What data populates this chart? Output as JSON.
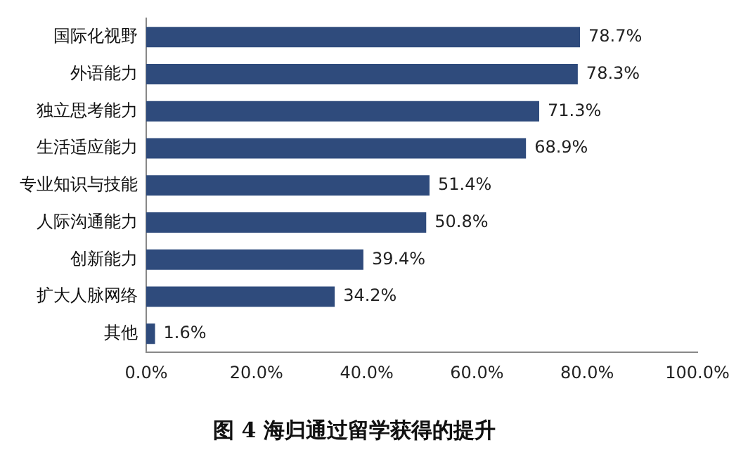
{
  "chart_data": {
    "type": "bar",
    "orientation": "horizontal",
    "title": "图 4 海归通过留学获得的提升",
    "categories": [
      "国际化视野",
      "外语能力",
      "独立思考能力",
      "生活适应能力",
      "专业知识与技能",
      "人际沟通能力",
      "创新能力",
      "扩大人脉网络",
      "其他"
    ],
    "values": [
      78.7,
      78.3,
      71.3,
      68.9,
      51.4,
      50.8,
      39.4,
      34.2,
      1.6
    ],
    "value_labels": [
      "78.7%",
      "78.3%",
      "71.3%",
      "68.9%",
      "51.4%",
      "50.8%",
      "39.4%",
      "34.2%",
      "1.6%"
    ],
    "color": "#2f4b7c",
    "xlim": [
      0,
      100
    ],
    "xticks": [
      {
        "value": 0,
        "label": "0.0%"
      },
      {
        "value": 20,
        "label": "20.0%"
      },
      {
        "value": 40,
        "label": "40.0%"
      },
      {
        "value": 60,
        "label": "60.0%"
      },
      {
        "value": 80,
        "label": "80.0%"
      },
      {
        "value": 100,
        "label": "100.0%"
      }
    ],
    "grid": false,
    "legend": false
  }
}
